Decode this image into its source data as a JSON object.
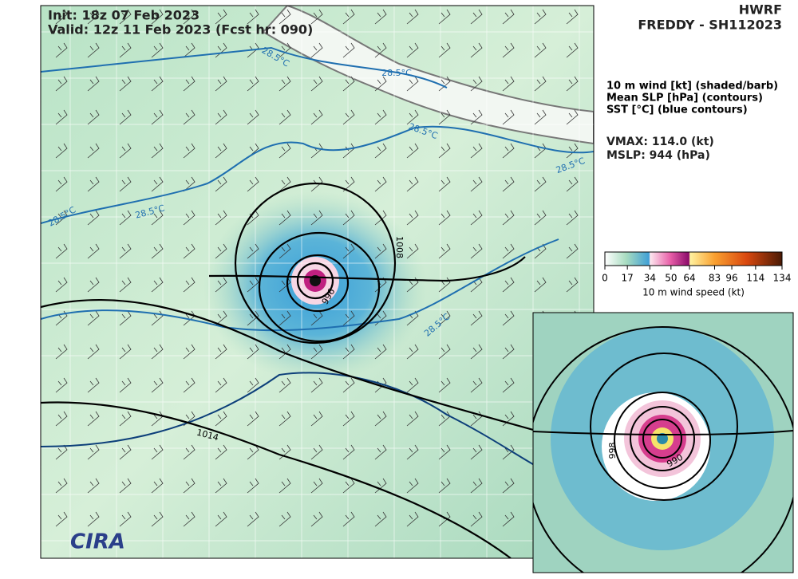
{
  "header": {
    "init": "Init:   18z 07 Feb 2023",
    "valid": "Valid: 12z 11 Feb 2023 (Fcst hr: 090)",
    "model": "HWRF",
    "storm": "FREDDY - SH112023"
  },
  "legend": {
    "lines": [
      "10 m wind [kt] (shaded/barb)",
      "Mean SLP [hPa] (contours)",
      "SST [°C] (blue contours)"
    ],
    "vmax": "VMAX: 114.0 (kt)",
    "mslp": "MSLP:  944 (hPa)"
  },
  "colorbar": {
    "label": "10 m wind speed (kt)",
    "lim": [
      0,
      134
    ],
    "ticks": [
      0,
      17,
      34,
      50,
      64,
      83,
      96,
      114,
      134
    ]
  },
  "contour_labels": [
    "28.5°C",
    "28.5°C",
    "28.5°C",
    "28.5°C",
    "28.5°C",
    "28.5°C",
    "28.5°C",
    "1008",
    "1014",
    "996"
  ],
  "inset_labels": [
    "998",
    "990"
  ],
  "logo": "CIRA"
}
